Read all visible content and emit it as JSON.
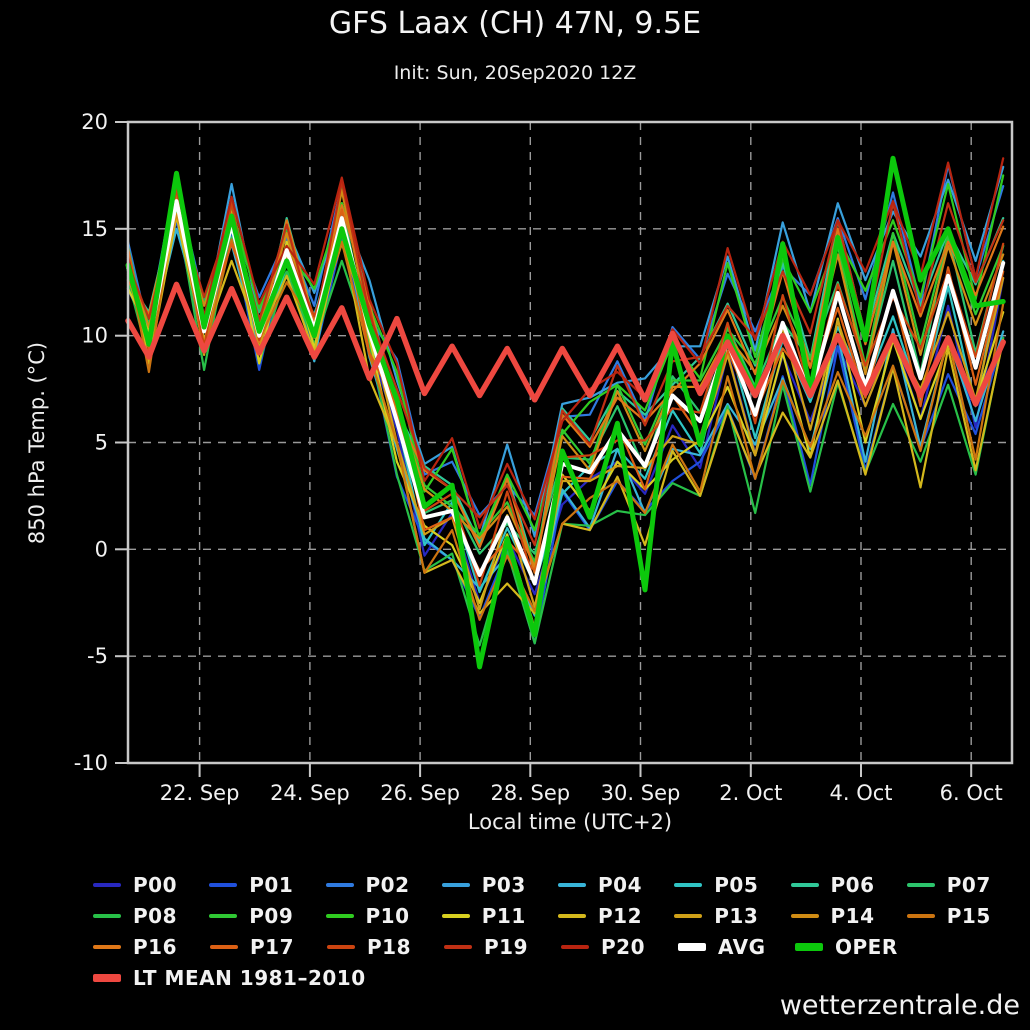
{
  "header": {
    "title": "GFS Laax (CH) 47N, 9.5E",
    "subtitle": "Init: Sun, 20Sep2020 12Z"
  },
  "watermark": "wetterzentrale.de",
  "axes": {
    "x_title": "Local time (UTC+2)",
    "y_title": "850 hPa Temp. (°C)"
  },
  "colors": {
    "background": "#000000",
    "text": "#f2f2f2",
    "grid": "#9a9a9a",
    "border": "#c8c8c8",
    "avg": "#ffffff",
    "oper": "#0cc80c",
    "ltmean": "#ee4840"
  },
  "legend_rows": [
    [
      "P00",
      "P01",
      "P02",
      "P03",
      "P04",
      "P05",
      "P06",
      "P07"
    ],
    [
      "P08",
      "P09",
      "P10",
      "P11",
      "P12",
      "P13",
      "P14",
      "P15"
    ],
    [
      "P16",
      "P17",
      "P18",
      "P19",
      "P20",
      "AVG",
      "OPER"
    ],
    [
      "LT MEAN 1981–2010"
    ]
  ],
  "chart_data": {
    "type": "line",
    "title": "GFS Laax (CH) 47N, 9.5E",
    "subtitle": "Init: Sun, 20Sep2020 12Z",
    "xlabel": "Local time (UTC+2)",
    "ylabel": "850 hPa Temp. (°C)",
    "ylim": [
      -10,
      20
    ],
    "x_range_days": [
      20.7,
      36.74
    ],
    "grid": true,
    "legend_position": "bottom",
    "y_ticks": [
      20,
      15,
      10,
      5,
      0,
      -5,
      -10
    ],
    "x_ticks": [
      {
        "day": 22,
        "label": "22. Sep"
      },
      {
        "day": 24,
        "label": "24. Sep"
      },
      {
        "day": 26,
        "label": "26. Sep"
      },
      {
        "day": 28,
        "label": "28. Sep"
      },
      {
        "day": 30,
        "label": "30. Sep"
      },
      {
        "day": 32,
        "label": "2. Oct"
      },
      {
        "day": 34,
        "label": "4. Oct"
      },
      {
        "day": 36,
        "label": "6. Oct"
      }
    ],
    "x_days": [
      20.7,
      21.08,
      21.58,
      22.08,
      22.58,
      23.08,
      23.58,
      24.08,
      24.58,
      25.08,
      25.58,
      26.08,
      26.58,
      27.08,
      27.58,
      28.08,
      28.58,
      29.08,
      29.58,
      30.08,
      30.58,
      31.08,
      31.58,
      32.08,
      32.58,
      33.08,
      33.58,
      34.08,
      34.58,
      35.08,
      35.58,
      36.08,
      36.58
    ],
    "series": [
      {
        "name": "P00",
        "color": "#2828c0",
        "width": 2.2,
        "values": [
          13.6,
          8.6,
          16.9,
          9.5,
          14.8,
          10.1,
          12.8,
          10.7,
          14.7,
          9.6,
          5.6,
          -0.3,
          1.7,
          -2.5,
          0.5,
          -2.1,
          2.1,
          3.3,
          4.1,
          2.6,
          5.8,
          3.8,
          9.2,
          4.5,
          9.1,
          6.0,
          9.5,
          6.7,
          10.0,
          6.1,
          11.4,
          5.7,
          12.7
        ]
      },
      {
        "name": "P01",
        "color": "#2050dc",
        "width": 2.2,
        "values": [
          12.2,
          10.0,
          15.4,
          9.4,
          14.9,
          8.4,
          14.1,
          9.0,
          14.5,
          9.5,
          3.4,
          0.4,
          -0.5,
          -3.2,
          0.0,
          -4.4,
          2.7,
          0.9,
          3.2,
          1.8,
          3.2,
          4.1,
          6.6,
          3.3,
          8.1,
          3.0,
          9.5,
          3.7,
          8.5,
          4.7,
          8.2,
          5.4,
          9.9
        ]
      },
      {
        "name": "P02",
        "color": "#2f7ae0",
        "width": 2.2,
        "values": [
          14.4,
          10.1,
          17.0,
          11.6,
          15.3,
          11.8,
          14.6,
          11.4,
          17.1,
          10.8,
          8.9,
          3.5,
          4.1,
          1.6,
          3.0,
          1.6,
          6.2,
          6.3,
          8.8,
          6.0,
          10.4,
          8.9,
          12.9,
          10.2,
          13.2,
          11.9,
          15.5,
          11.7,
          16.7,
          11.5,
          18.0,
          12.7,
          17.0
        ]
      },
      {
        "name": "P03",
        "color": "#38a0dc",
        "width": 2.2,
        "values": [
          13.2,
          10.5,
          17.6,
          10.4,
          17.1,
          10.7,
          15.0,
          12.0,
          15.9,
          12.6,
          7.9,
          4.0,
          4.8,
          0.5,
          4.9,
          0.6,
          6.8,
          7.1,
          7.8,
          8.0,
          9.5,
          9.5,
          13.7,
          9.3,
          15.3,
          11.1,
          16.2,
          12.6,
          15.8,
          13.7,
          17.3,
          13.5,
          17.9
        ]
      },
      {
        "name": "P04",
        "color": "#38b4d8",
        "width": 2.2,
        "values": [
          13.0,
          9.7,
          15.0,
          10.5,
          14.3,
          9.4,
          13.9,
          8.8,
          15.7,
          9.0,
          4.7,
          0.5,
          -0.5,
          -1.8,
          -0.3,
          -3.1,
          2.8,
          1.0,
          4.7,
          1.7,
          4.7,
          4.4,
          6.8,
          4.9,
          8.0,
          4.7,
          10.0,
          4.1,
          10.3,
          4.8,
          9.9,
          6.0,
          10.2
        ]
      },
      {
        "name": "P05",
        "color": "#30c4c4",
        "width": 2.2,
        "values": [
          13.6,
          8.7,
          17.0,
          9.7,
          15.0,
          10.3,
          13.0,
          11.0,
          15.0,
          9.9,
          6.1,
          0.2,
          2.2,
          -2.0,
          1.0,
          -1.6,
          2.6,
          3.9,
          4.7,
          3.3,
          6.5,
          4.5,
          9.9,
          5.2,
          9.8,
          6.9,
          10.4,
          7.6,
          10.9,
          7.0,
          12.3,
          6.7,
          13.5
        ]
      },
      {
        "name": "P06",
        "color": "#30c898",
        "width": 2.2,
        "values": [
          12.6,
          11.1,
          16.5,
          10.8,
          16.3,
          9.8,
          15.5,
          10.7,
          16.2,
          11.6,
          6.5,
          3.9,
          3.0,
          0.3,
          3.5,
          -0.9,
          6.6,
          5.1,
          7.4,
          6.3,
          7.7,
          9.0,
          11.5,
          8.6,
          13.4,
          8.9,
          15.4,
          10.0,
          14.8,
          11.4,
          14.9,
          12.4,
          15.5
        ]
      },
      {
        "name": "P07",
        "color": "#2cc46c",
        "width": 2.2,
        "values": [
          14.2,
          9.6,
          16.5,
          10.9,
          14.6,
          11.1,
          13.9,
          10.5,
          16.2,
          9.7,
          7.3,
          1.7,
          2.3,
          -0.2,
          1.2,
          -0.2,
          4.3,
          4.2,
          6.7,
          3.7,
          8.1,
          6.4,
          10.4,
          7.6,
          10.6,
          8.9,
          12.5,
          8.5,
          13.5,
          8.2,
          14.7,
          9.2,
          14.2
        ]
      },
      {
        "name": "P08",
        "color": "#28c048",
        "width": 2.2,
        "values": [
          12.6,
          8.9,
          16.0,
          8.4,
          15.1,
          8.7,
          13.0,
          9.6,
          13.5,
          9.6,
          3.5,
          -1.0,
          -0.2,
          -4.5,
          -0.1,
          -4.4,
          1.2,
          1.1,
          1.8,
          1.6,
          3.1,
          2.5,
          6.7,
          1.7,
          7.7,
          2.7,
          7.8,
          3.6,
          6.8,
          4.1,
          7.7,
          3.5,
          9.9
        ]
      },
      {
        "name": "P09",
        "color": "#30c834",
        "width": 2.2,
        "values": [
          13.3,
          10.5,
          15.8,
          11.5,
          15.3,
          10.4,
          14.9,
          10.0,
          16.9,
          10.5,
          6.9,
          3.0,
          2.0,
          0.7,
          2.2,
          -0.6,
          5.6,
          4.0,
          7.7,
          4.9,
          7.9,
          7.9,
          10.3,
          8.7,
          11.8,
          8.9,
          14.2,
          8.6,
          14.8,
          9.6,
          14.7,
          11.0,
          14.2
        ]
      },
      {
        "name": "P10",
        "color": "#30cc20",
        "width": 2.2,
        "values": [
          13.9,
          9.5,
          17.3,
          10.7,
          16.0,
          11.3,
          14.0,
          12.2,
          16.2,
          11.4,
          8.3,
          2.7,
          4.7,
          0.5,
          3.5,
          0.9,
          5.4,
          6.9,
          7.7,
          6.5,
          9.7,
          8.0,
          13.4,
          9.0,
          13.6,
          11.1,
          14.6,
          12.1,
          15.4,
          11.8,
          17.1,
          11.7,
          17.5
        ]
      },
      {
        "name": "P11",
        "color": "#d8d020",
        "width": 2.2,
        "values": [
          12.2,
          10.2,
          15.6,
          9.7,
          15.2,
          8.7,
          14.4,
          9.4,
          14.9,
          9.9,
          4.1,
          1.1,
          0.2,
          -2.5,
          0.7,
          -3.7,
          3.5,
          1.8,
          4.1,
          2.8,
          4.2,
          5.1,
          7.6,
          4.4,
          9.2,
          4.3,
          10.8,
          5.0,
          9.8,
          6.1,
          9.6,
          6.9,
          11.1
        ]
      },
      {
        "name": "P12",
        "color": "#d4b81c",
        "width": 2.2,
        "values": [
          13.8,
          8.7,
          15.6,
          9.8,
          13.5,
          10.0,
          12.8,
          9.2,
          14.9,
          8.0,
          4.9,
          -1.1,
          -0.5,
          -3.0,
          -1.6,
          -3.0,
          1.2,
          0.9,
          3.4,
          0.2,
          4.6,
          2.5,
          6.5,
          3.4,
          6.4,
          4.3,
          7.9,
          3.5,
          8.5,
          2.9,
          9.4,
          3.7,
          9.8
        ]
      },
      {
        "name": "P13",
        "color": "#cfa018",
        "width": 2.2,
        "values": [
          12.8,
          9.5,
          16.6,
          9.1,
          15.8,
          9.4,
          13.7,
          10.4,
          14.3,
          10.6,
          5.0,
          0.7,
          1.5,
          -2.8,
          1.6,
          -2.7,
          3.2,
          3.2,
          3.9,
          3.8,
          5.3,
          4.9,
          9.1,
          4.4,
          10.4,
          5.6,
          10.7,
          6.7,
          9.9,
          7.5,
          11.1,
          7.0,
          12.7
        ]
      },
      {
        "name": "P14",
        "color": "#d08c14",
        "width": 2.2,
        "values": [
          13.3,
          10.4,
          15.7,
          11.4,
          15.2,
          10.3,
          14.8,
          9.9,
          16.8,
          10.4,
          6.7,
          2.8,
          1.8,
          0.5,
          2.0,
          -0.8,
          5.3,
          3.7,
          7.4,
          4.6,
          7.6,
          7.6,
          10.0,
          8.3,
          11.4,
          8.5,
          13.8,
          8.2,
          14.4,
          9.1,
          14.2,
          10.5,
          13.8
        ]
      },
      {
        "name": "P15",
        "color": "#cc7410",
        "width": 2.2,
        "values": [
          13.5,
          8.3,
          16.6,
          9.2,
          14.5,
          9.8,
          12.5,
          10.4,
          14.4,
          9.1,
          5.0,
          -1.1,
          0.9,
          -3.3,
          -0.3,
          -2.9,
          1.2,
          2.4,
          3.2,
          1.7,
          4.9,
          2.7,
          8.1,
          3.3,
          7.9,
          4.8,
          8.3,
          5.3,
          8.6,
          4.6,
          9.9,
          4.2,
          11.5
        ]
      },
      {
        "name": "P16",
        "color": "#e07818",
        "width": 2.2,
        "values": [
          12.6,
          11.0,
          16.4,
          10.7,
          16.2,
          9.7,
          15.4,
          10.6,
          16.1,
          11.5,
          6.3,
          3.7,
          2.8,
          0.1,
          3.3,
          -1.1,
          6.3,
          4.8,
          7.1,
          6.0,
          7.4,
          8.7,
          11.2,
          8.2,
          13.0,
          8.5,
          15.0,
          9.6,
          14.4,
          10.9,
          14.4,
          11.9,
          15.1
        ]
      },
      {
        "name": "P17",
        "color": "#dc6014",
        "width": 2.2,
        "values": [
          14.1,
          9.3,
          16.2,
          10.6,
          14.3,
          10.8,
          13.6,
          10.2,
          15.9,
          9.2,
          6.7,
          0.9,
          1.5,
          -1.0,
          0.4,
          -1.0,
          3.4,
          3.3,
          5.8,
          2.8,
          7.2,
          5.3,
          9.3,
          6.4,
          9.4,
          7.7,
          11.3,
          7.1,
          12.1,
          6.7,
          13.2,
          7.7,
          13.0
        ]
      },
      {
        "name": "P18",
        "color": "#cc4410",
        "width": 2.2,
        "values": [
          12.9,
          9.8,
          16.9,
          9.5,
          16.2,
          9.8,
          14.1,
          10.9,
          14.8,
          11.3,
          5.9,
          1.8,
          2.6,
          -1.7,
          2.7,
          -1.6,
          4.3,
          4.4,
          5.1,
          5.1,
          6.6,
          6.4,
          10.6,
          5.9,
          11.9,
          7.3,
          12.4,
          8.6,
          11.8,
          9.4,
          13.0,
          9.0,
          14.3
        ]
      },
      {
        "name": "P19",
        "color": "#c03014",
        "width": 2.2,
        "values": [
          13.4,
          10.8,
          16.1,
          11.8,
          15.6,
          10.7,
          15.2,
          10.3,
          17.2,
          11.0,
          7.5,
          3.8,
          2.8,
          1.5,
          3.0,
          0.2,
          6.5,
          4.9,
          8.6,
          5.8,
          8.8,
          9.0,
          11.4,
          9.9,
          13.0,
          10.1,
          15.4,
          10.0,
          16.2,
          11.1,
          16.2,
          12.5,
          15.4
        ]
      },
      {
        "name": "P20",
        "color": "#b82410",
        "width": 2.2,
        "values": [
          13.7,
          9.7,
          17.2,
          10.9,
          16.5,
          11.5,
          14.2,
          12.4,
          17.4,
          11.7,
          8.7,
          3.2,
          5.2,
          1.0,
          4.0,
          1.4,
          6.0,
          7.5,
          8.3,
          7.1,
          10.3,
          8.7,
          14.1,
          9.8,
          14.4,
          11.9,
          15.4,
          13.0,
          16.3,
          12.8,
          18.1,
          12.7,
          18.3
        ]
      },
      {
        "name": "AVG",
        "color": "#ffffff",
        "width": 4,
        "values": [
          13.2,
          9.7,
          16.3,
          10.2,
          15.2,
          10.0,
          14.0,
          10.3,
          15.5,
          10.2,
          6.0,
          1.5,
          1.8,
          -1.2,
          1.5,
          -1.6,
          4.0,
          3.6,
          5.6,
          3.9,
          7.2,
          6.0,
          9.7,
          6.3,
          10.6,
          7.2,
          12.0,
          7.6,
          12.1,
          8.0,
          12.8,
          8.5,
          13.4
        ]
      },
      {
        "name": "OPER",
        "color": "#0cc80c",
        "width": 5,
        "values": [
          13.3,
          9.6,
          17.6,
          10.4,
          15.6,
          10.2,
          13.5,
          10.0,
          15.0,
          10.5,
          7.0,
          2.0,
          3.0,
          -5.5,
          0.5,
          -4.0,
          4.6,
          1.5,
          5.9,
          -1.9,
          9.7,
          4.9,
          10.0,
          7.3,
          14.3,
          7.4,
          14.6,
          9.8,
          18.3,
          12.6,
          15.0,
          11.4,
          11.6
        ]
      },
      {
        "name": "LT MEAN 1981–2010",
        "color": "#ee4840",
        "width": 5.5,
        "values": [
          10.7,
          9.0,
          12.4,
          9.3,
          12.2,
          9.2,
          11.8,
          9.0,
          11.3,
          8.0,
          10.8,
          7.3,
          9.5,
          7.2,
          9.4,
          7.0,
          9.4,
          7.2,
          9.5,
          7.0,
          10.1,
          7.3,
          9.7,
          7.2,
          10.0,
          7.2,
          10.0,
          7.3,
          10.0,
          7.2,
          9.9,
          6.8,
          9.7
        ]
      }
    ]
  }
}
